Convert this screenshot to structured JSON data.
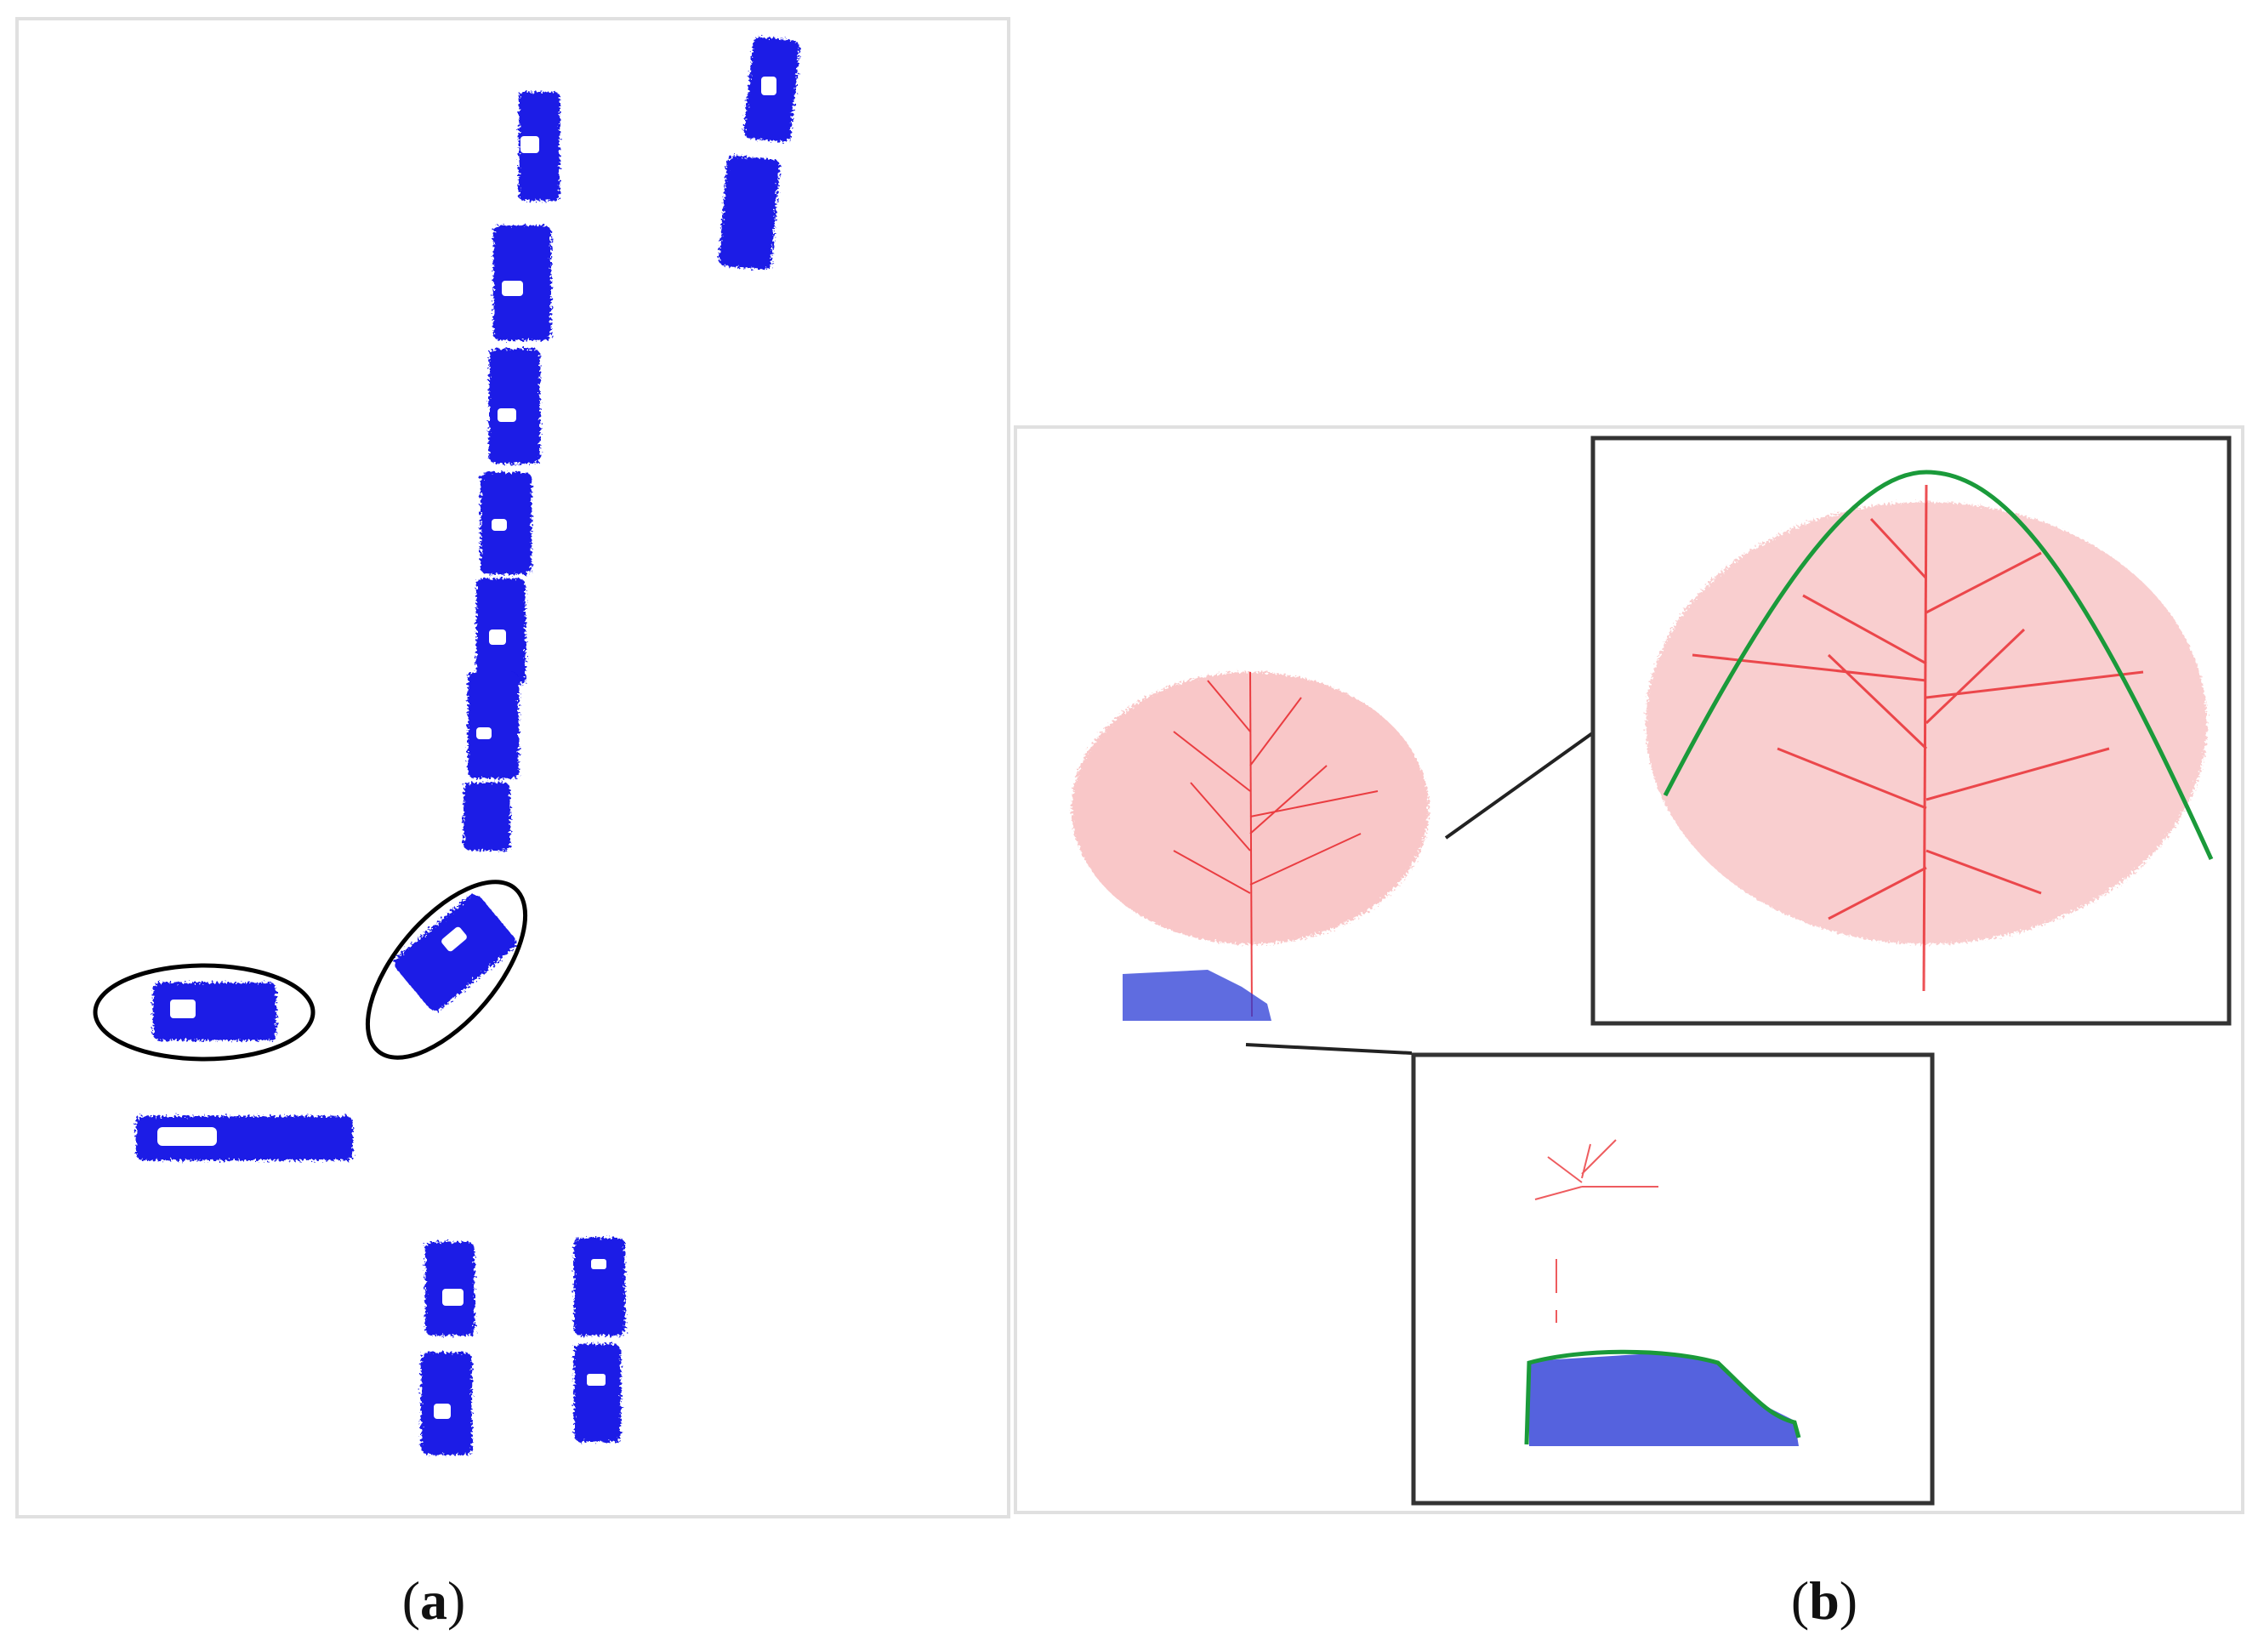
{
  "figure": {
    "panel_a": {
      "label_open": "(",
      "label_letter": "a",
      "label_close": ")",
      "point_color": "#1a1ae6",
      "highlight_color": "#000000"
    },
    "panel_b": {
      "label_open": "(",
      "label_letter": "b",
      "label_close": ")",
      "tree_color": "#e8252a",
      "car_color": "#2a3bd6",
      "outline_color": "#1a9a3a",
      "frame_color": "#333333"
    }
  }
}
